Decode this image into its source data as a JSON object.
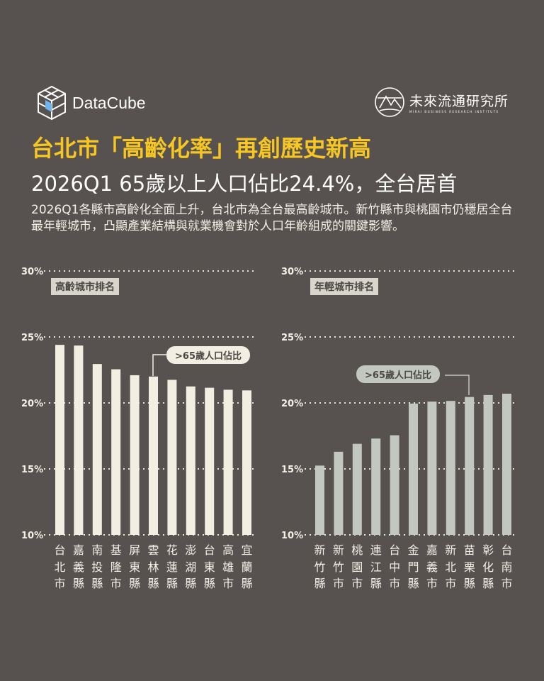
{
  "brand": {
    "logo_text": "DataCube",
    "partner_name": "未來流通研究所",
    "partner_sub": "MIRAI BUSINESS RESEARCH INSTITUTE"
  },
  "title": "台北市「高齡化率」再創歷史新高",
  "subtitle": "2026Q1 65歲以上人口佔比24.4%，全台居首",
  "description": "2026Q1各縣市高齡化全面上升，台北市為全台最高齡城市。新竹縣市與桃園市仍穩居全台最年輕城市，凸顯產業結構與就業機會對於人口年齡組成的關鍵影響。",
  "colors": {
    "background": "#57524f",
    "title": "#f6c623",
    "left_bars": "#f2efe2",
    "right_bars": "#c2c8bf"
  },
  "chart_data": [
    {
      "type": "bar",
      "title": "高齡城市排名",
      "legend_label": ">65歲人口佔比",
      "ylim": [
        10,
        30
      ],
      "yticks": [
        "10%",
        "15%",
        "20%",
        "25%",
        "30%"
      ],
      "grid": true,
      "categories": [
        "台北市",
        "嘉義縣",
        "南投縣",
        "基隆市",
        "屏東縣",
        "雲林縣",
        "花蓮縣",
        "澎湖縣",
        "台東縣",
        "高雄市",
        "宜蘭縣"
      ],
      "values": [
        24.4,
        24.35,
        22.95,
        22.55,
        22.1,
        22.0,
        21.75,
        21.25,
        21.15,
        21.0,
        20.95
      ]
    },
    {
      "type": "bar",
      "title": "年輕城市排名",
      "legend_label": ">65歲人口佔比",
      "ylim": [
        10,
        30
      ],
      "yticks": [
        "10%",
        "15%",
        "20%",
        "25%",
        "30%"
      ],
      "grid": true,
      "categories": [
        "新竹縣",
        "新竹市",
        "桃園市",
        "連江縣",
        "台中市",
        "金門縣",
        "嘉義市",
        "新北市",
        "苗栗縣",
        "彰化縣",
        "台南市"
      ],
      "values": [
        15.25,
        16.3,
        16.9,
        17.3,
        17.55,
        19.95,
        20.1,
        20.15,
        20.45,
        20.6,
        20.7
      ]
    }
  ]
}
